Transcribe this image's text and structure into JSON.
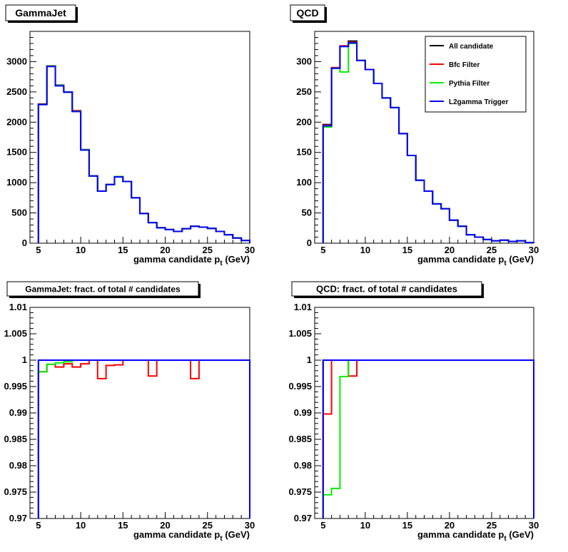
{
  "chart_data": [
    {
      "type": "line",
      "step": "histogram",
      "title": "GammaJet",
      "xlabel": "gamma candidate p",
      "xlabel_sub": "t",
      "xlabel_unit": " (GeV)",
      "xlim": [
        4,
        30
      ],
      "ylim": [
        0,
        3500
      ],
      "xticks": [
        5,
        10,
        15,
        20,
        25,
        30
      ],
      "yticks": [
        0,
        500,
        1000,
        1500,
        2000,
        2500,
        3000
      ],
      "ytick_labels": [
        "0",
        "500",
        "1000",
        "1500",
        "2000",
        "2500",
        "3000"
      ],
      "grid": false,
      "bin_edges": [
        5,
        6,
        7,
        8,
        9,
        10,
        11,
        12,
        13,
        14,
        15,
        16,
        17,
        18,
        19,
        20,
        21,
        22,
        23,
        24,
        25,
        26,
        27,
        28,
        29,
        30
      ],
      "series": [
        {
          "color": "#000000",
          "values": [
            2300,
            2930,
            2610,
            2500,
            2180,
            1545,
            1110,
            860,
            970,
            1100,
            1020,
            750,
            490,
            340,
            255,
            225,
            195,
            240,
            280,
            265,
            245,
            195,
            140,
            85,
            45
          ]
        },
        {
          "color": "#ff0000",
          "values": [
            2295,
            2925,
            2605,
            2495,
            2190,
            1545,
            1110,
            860,
            970,
            1100,
            1020,
            750,
            490,
            340,
            255,
            225,
            195,
            240,
            280,
            265,
            245,
            195,
            140,
            85,
            45
          ]
        },
        {
          "color": "#00ee00",
          "values": [
            2290,
            2925,
            2605,
            2495,
            2180,
            1545,
            1110,
            860,
            970,
            1100,
            1020,
            750,
            490,
            340,
            255,
            225,
            195,
            240,
            280,
            265,
            245,
            195,
            140,
            85,
            45
          ]
        },
        {
          "color": "#0000ff",
          "values": [
            2290,
            2920,
            2600,
            2495,
            2175,
            1540,
            1110,
            860,
            970,
            1095,
            1020,
            750,
            490,
            340,
            255,
            225,
            195,
            240,
            280,
            265,
            245,
            195,
            140,
            85,
            45
          ]
        }
      ]
    },
    {
      "type": "line",
      "step": "histogram",
      "title": "QCD",
      "xlabel": "gamma candidate p",
      "xlabel_sub": "t",
      "xlabel_unit": " (GeV)",
      "xlim": [
        4,
        30
      ],
      "ylim": [
        0,
        350
      ],
      "xticks": [
        5,
        10,
        15,
        20,
        25,
        30
      ],
      "yticks": [
        0,
        50,
        100,
        150,
        200,
        250,
        300
      ],
      "ytick_labels": [
        "0",
        "50",
        "100",
        "150",
        "200",
        "250",
        "300"
      ],
      "grid": false,
      "legend_position": "top-right",
      "legend": [
        {
          "label": "All candidate",
          "color": "#000000"
        },
        {
          "label": "Bfc Filter",
          "color": "#ff0000"
        },
        {
          "label": "Pythia Filter",
          "color": "#00ee00"
        },
        {
          "label": "L2gamma Trigger",
          "color": "#0000ff"
        }
      ],
      "bin_edges": [
        5,
        6,
        7,
        8,
        9,
        10,
        11,
        12,
        13,
        14,
        15,
        16,
        17,
        18,
        19,
        20,
        21,
        22,
        23,
        24,
        25,
        26,
        27,
        28,
        29,
        30
      ],
      "series": [
        {
          "color": "#000000",
          "values": [
            196,
            290,
            326,
            334,
            302,
            287,
            264,
            240,
            224,
            181,
            145,
            104,
            86,
            65,
            57,
            38,
            28,
            14,
            10,
            6,
            4,
            5,
            3,
            4,
            1
          ]
        },
        {
          "color": "#ff0000",
          "values": [
            195,
            290,
            326,
            332,
            302,
            287,
            264,
            240,
            224,
            181,
            145,
            104,
            86,
            65,
            57,
            38,
            28,
            14,
            10,
            6,
            4,
            5,
            3,
            4,
            1
          ]
        },
        {
          "color": "#00ee00",
          "values": [
            192,
            289,
            283,
            330,
            302,
            287,
            264,
            240,
            224,
            181,
            145,
            104,
            86,
            65,
            57,
            38,
            28,
            14,
            10,
            6,
            4,
            5,
            3,
            4,
            1
          ]
        },
        {
          "color": "#0000ff",
          "values": [
            194,
            289,
            325,
            331,
            302,
            287,
            264,
            240,
            224,
            181,
            145,
            104,
            86,
            65,
            57,
            38,
            28,
            14,
            10,
            6,
            4,
            5,
            3,
            4,
            1
          ]
        }
      ]
    },
    {
      "type": "line",
      "step": "histogram",
      "title": "GammaJet: fract. of total # candidates",
      "xlabel": "gamma candidate p",
      "xlabel_sub": "t",
      "xlabel_unit": " (GeV)",
      "xlim": [
        4,
        30
      ],
      "ylim": [
        0.97,
        1.01
      ],
      "xticks": [
        5,
        10,
        15,
        20,
        25,
        30
      ],
      "yticks": [
        0.97,
        0.975,
        0.98,
        0.985,
        0.99,
        0.995,
        1.0,
        1.005,
        1.01
      ],
      "ytick_labels": [
        "0.97",
        "0.975",
        "0.98",
        "0.985",
        "0.99",
        "0.995",
        "1",
        "1.005",
        "1.01"
      ],
      "grid": false,
      "bin_edges": [
        5,
        6,
        7,
        8,
        9,
        10,
        11,
        12,
        13,
        14,
        15,
        16,
        17,
        18,
        19,
        20,
        21,
        22,
        23,
        24,
        25,
        26,
        27,
        28,
        29,
        30
      ],
      "series": [
        {
          "color": "#000000",
          "values": [
            1,
            1,
            1,
            1,
            1,
            1,
            1,
            1,
            1,
            1,
            1,
            1,
            1,
            1,
            1,
            1,
            1,
            1,
            1,
            1,
            1,
            1,
            1,
            1,
            1
          ]
        },
        {
          "color": "#ff0000",
          "values": [
            0.9978,
            0.9992,
            0.9987,
            0.9993,
            0.9987,
            0.9993,
            1,
            0.9965,
            0.999,
            0.9991,
            1,
            1,
            1,
            0.997,
            1,
            1,
            1,
            1,
            0.9965,
            1,
            1,
            1,
            1,
            1,
            1
          ]
        },
        {
          "color": "#00ee00",
          "values": [
            0.9978,
            0.9992,
            0.9995,
            0.9997,
            1,
            1,
            1,
            1,
            1,
            1,
            1,
            1,
            1,
            1,
            1,
            1,
            1,
            1,
            1,
            1,
            1,
            1,
            1,
            1,
            1
          ]
        },
        {
          "color": "#0000ff",
          "values": [
            1,
            1,
            1,
            1,
            1,
            1,
            1,
            1,
            1,
            1,
            1,
            1,
            1,
            1,
            1,
            1,
            1,
            1,
            1,
            1,
            1,
            1,
            1,
            1,
            1
          ]
        }
      ]
    },
    {
      "type": "line",
      "step": "histogram",
      "title": "QCD: fract. of total # candidates",
      "xlabel": "gamma candidate p",
      "xlabel_sub": "t",
      "xlabel_unit": " (GeV)",
      "xlim": [
        4,
        30
      ],
      "ylim": [
        0.97,
        1.01
      ],
      "xticks": [
        5,
        10,
        15,
        20,
        25,
        30
      ],
      "yticks": [
        0.97,
        0.975,
        0.98,
        0.985,
        0.99,
        0.995,
        1.0,
        1.005,
        1.01
      ],
      "ytick_labels": [
        "0.97",
        "0.975",
        "0.98",
        "0.985",
        "0.99",
        "0.995",
        "1",
        "1.005",
        "1.01"
      ],
      "grid": false,
      "bin_edges": [
        5,
        6,
        7,
        8,
        9,
        10,
        11,
        12,
        13,
        14,
        15,
        16,
        17,
        18,
        19,
        20,
        21,
        22,
        23,
        24,
        25,
        26,
        27,
        28,
        29,
        30
      ],
      "series": [
        {
          "color": "#000000",
          "values": [
            1,
            1,
            1,
            1,
            1,
            1,
            1,
            1,
            1,
            1,
            1,
            1,
            1,
            1,
            1,
            1,
            1,
            1,
            1,
            1,
            1,
            1,
            1,
            1,
            1
          ]
        },
        {
          "color": "#ff0000",
          "values": [
            0.9898,
            1,
            1,
            0.997,
            1,
            1,
            1,
            1,
            1,
            1,
            1,
            1,
            1,
            1,
            1,
            1,
            1,
            1,
            1,
            1,
            1,
            1,
            1,
            1,
            1
          ]
        },
        {
          "color": "#00ee00",
          "values": [
            0.9745,
            0.9757,
            0.9969,
            1,
            1,
            1,
            1,
            1,
            1,
            1,
            1,
            1,
            1,
            1,
            1,
            1,
            1,
            1,
            1,
            1,
            1,
            1,
            1,
            1,
            1
          ]
        },
        {
          "color": "#0000ff",
          "values": [
            1,
            1,
            1,
            1,
            1,
            1,
            1,
            1,
            1,
            1,
            1,
            1,
            1,
            1,
            1,
            1,
            1,
            1,
            1,
            1,
            1,
            1,
            1,
            1,
            1
          ]
        }
      ]
    }
  ]
}
